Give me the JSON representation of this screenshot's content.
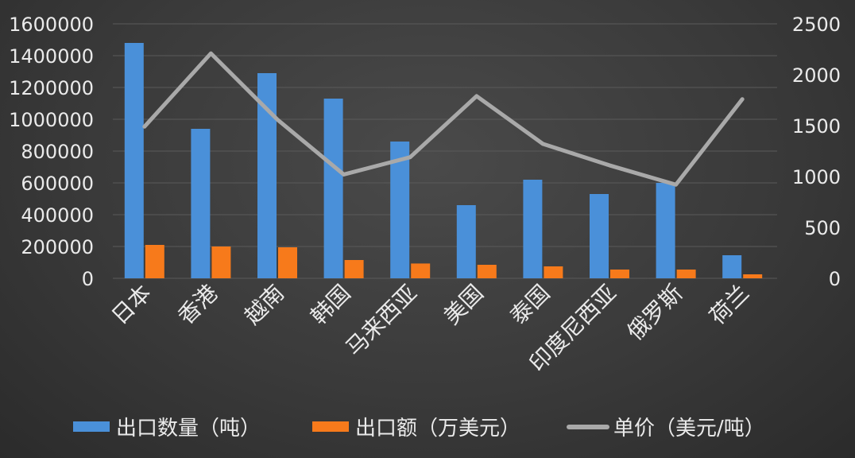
{
  "chart_data": {
    "type": "bar",
    "title": "",
    "categories": [
      "日本",
      "香港",
      "越南",
      "韩国",
      "马来西亚",
      "美国",
      "泰国",
      "印度尼西亚",
      "俄罗斯",
      "荷兰"
    ],
    "series": [
      {
        "name": "出口数量（吨）",
        "type": "bar",
        "axis": "left",
        "values": [
          1480000,
          940000,
          1290000,
          1130000,
          860000,
          460000,
          620000,
          530000,
          600000,
          145000
        ]
      },
      {
        "name": "出口额（万美元）",
        "type": "bar",
        "axis": "left",
        "values": [
          210000,
          200000,
          195000,
          115000,
          93000,
          85000,
          75000,
          55000,
          55000,
          25000
        ]
      },
      {
        "name": "单价（美元/吨）",
        "type": "line",
        "axis": "right",
        "values": [
          1490,
          2210,
          1560,
          1020,
          1190,
          1790,
          1320,
          1110,
          920,
          1760
        ]
      }
    ],
    "y_left": {
      "min": 0,
      "max": 1600000,
      "ticks": [
        "0",
        "200000",
        "400000",
        "600000",
        "800000",
        "1000000",
        "1200000",
        "1400000",
        "1600000"
      ]
    },
    "y_right": {
      "min": 0,
      "max": 2500,
      "ticks": [
        "0",
        "500",
        "1000",
        "1500",
        "2000",
        "2500"
      ]
    },
    "grid": true,
    "legend_position": "bottom",
    "colors": {
      "series1": "#4a90d9",
      "series2": "#f77a1b",
      "series3": "#a9a9a9",
      "grid": "#5a5a5a"
    }
  }
}
